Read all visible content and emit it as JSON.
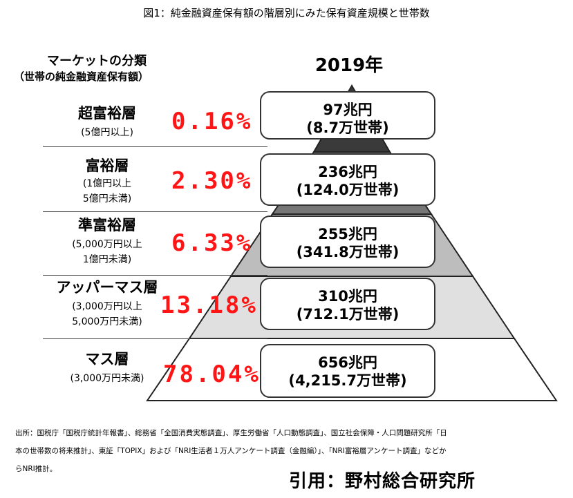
{
  "figure_title": "図1：純金融資産保有額の階層別にみた保有資産規模と世帯数",
  "category_header": {
    "line1": "マーケットの分類",
    "line2": "（世帯の純金融資産保有額）"
  },
  "year_label": "2019年",
  "tiers": [
    {
      "name": "超富裕層",
      "sub1": "(5億円以上)",
      "sub2": "",
      "percent": "0.16%",
      "assets": "97兆円",
      "households": "(8.7万世帯)"
    },
    {
      "name": "富裕層",
      "sub1": "(1億円以上",
      "sub2": "5億円未満)",
      "percent": "2.30%",
      "assets": "236兆円",
      "households": "(124.0万世帯)"
    },
    {
      "name": "準富裕層",
      "sub1": "(5,000万円以上",
      "sub2": "1億円未満)",
      "percent": "6.33%",
      "assets": "255兆円",
      "households": "(341.8万世帯)"
    },
    {
      "name": "アッパーマス層",
      "sub1": "(3,000万円以上",
      "sub2": "5,000万円未満)",
      "percent": "13.18%",
      "assets": "310兆円",
      "households": "(712.1万世帯)"
    },
    {
      "name": "マス層",
      "sub1": "(3,000万円未満)",
      "sub2": "",
      "percent": "78.04%",
      "assets": "656兆円",
      "households": "(4,215.7万世帯)"
    }
  ],
  "pyramid_colors": {
    "tier1": "#3a3a3a",
    "tier2": "#777777",
    "tier3": "#bdbdbd",
    "tier4": "#e0e0e0",
    "tier5": "#ffffff",
    "outline": "#222222"
  },
  "percent_color": "#ff1515",
  "source_text": {
    "line1": "出所：国税庁「国税庁統計年報書」、総務省「全国消費実態調査」、厚生労働省「人口動態調査」、国立社会保障・人口問題研究所「日",
    "line2": "本の世帯数の将来推計」、東証「TOPIX」および「NRI生活者１万人アンケート調査（金融編）」、「NRI富裕層アンケート調査」などか",
    "line3": "らNRI推計。"
  },
  "credit": "引用：野村総合研究所"
}
